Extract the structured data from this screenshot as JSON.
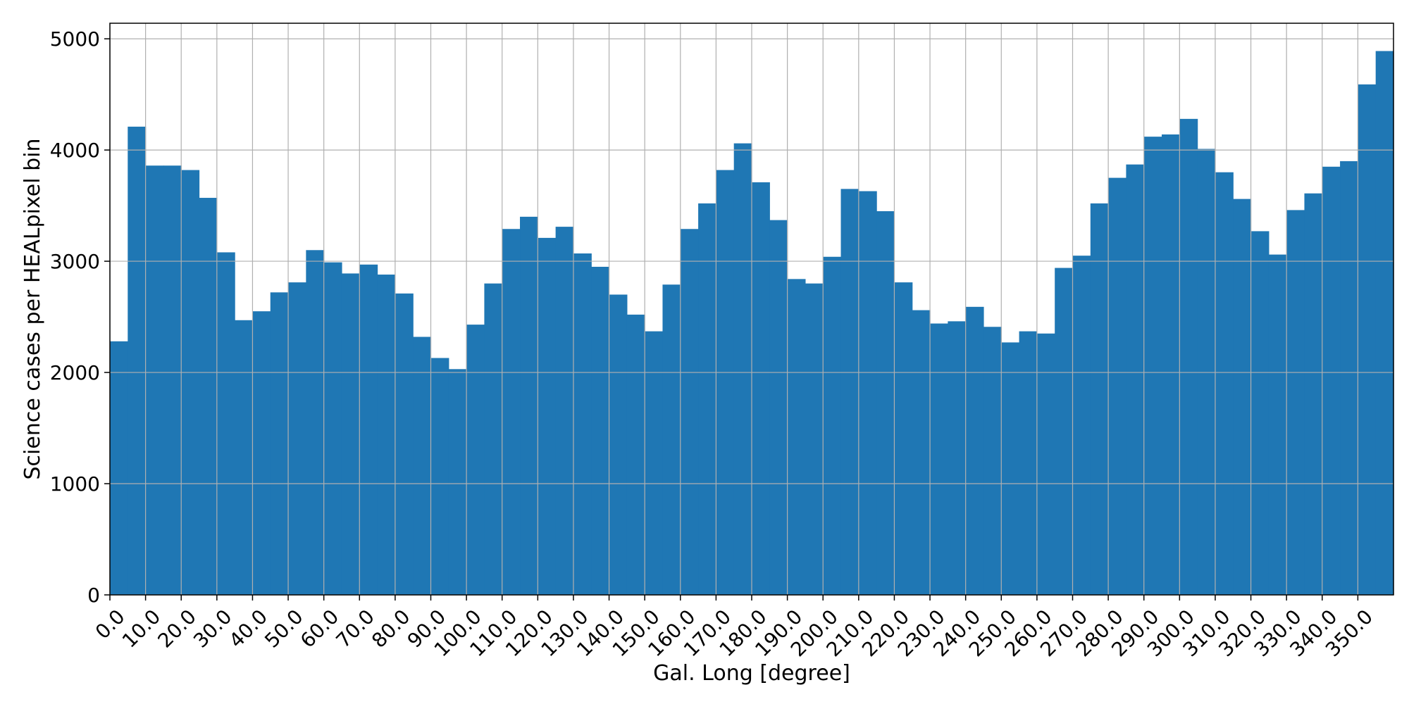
{
  "chart_data": {
    "type": "bar",
    "title": "",
    "xlabel": "Gal. Long [degree]",
    "ylabel": "Science cases per HEALpixel bin",
    "bin_width": 5,
    "x_start": 0,
    "xlim": [
      0,
      360
    ],
    "ylim": [
      0,
      5000
    ],
    "grid": true,
    "bar_color": "#1f77b4",
    "y_ticks": [
      0,
      1000,
      2000,
      3000,
      4000,
      5000
    ],
    "y_tick_labels": [
      "0",
      "1000",
      "2000",
      "3000",
      "4000",
      "5000"
    ],
    "x_ticks": [
      0,
      10,
      20,
      30,
      40,
      50,
      60,
      70,
      80,
      90,
      100,
      110,
      120,
      130,
      140,
      150,
      160,
      170,
      180,
      190,
      200,
      210,
      220,
      230,
      240,
      250,
      260,
      270,
      280,
      290,
      300,
      310,
      320,
      330,
      340,
      350
    ],
    "x_tick_labels": [
      "0.0",
      "10.0",
      "20.0",
      "30.0",
      "40.0",
      "50.0",
      "60.0",
      "70.0",
      "80.0",
      "90.0",
      "100.0",
      "110.0",
      "120.0",
      "130.0",
      "140.0",
      "150.0",
      "160.0",
      "170.0",
      "180.0",
      "190.0",
      "200.0",
      "210.0",
      "220.0",
      "230.0",
      "240.0",
      "250.0",
      "260.0",
      "270.0",
      "280.0",
      "290.0",
      "300.0",
      "310.0",
      "320.0",
      "330.0",
      "340.0",
      "350.0"
    ],
    "values": [
      2280,
      4210,
      3860,
      3860,
      3820,
      3570,
      3080,
      2470,
      2550,
      2720,
      2810,
      3100,
      2990,
      2890,
      2970,
      2880,
      2710,
      2320,
      2130,
      2030,
      2430,
      2800,
      3290,
      3400,
      3210,
      3310,
      3070,
      2950,
      2700,
      2520,
      2370,
      2790,
      3290,
      3520,
      3820,
      4060,
      3710,
      3370,
      2840,
      2800,
      3040,
      3650,
      3630,
      3450,
      2810,
      2560,
      2440,
      2460,
      2590,
      2410,
      2270,
      2370,
      2350,
      2940,
      3050,
      3520,
      3750,
      3870,
      4120,
      4140,
      4280,
      4010,
      3800,
      3560,
      3270,
      3060,
      3460,
      3610,
      3850,
      3900,
      4590,
      4890
    ]
  }
}
